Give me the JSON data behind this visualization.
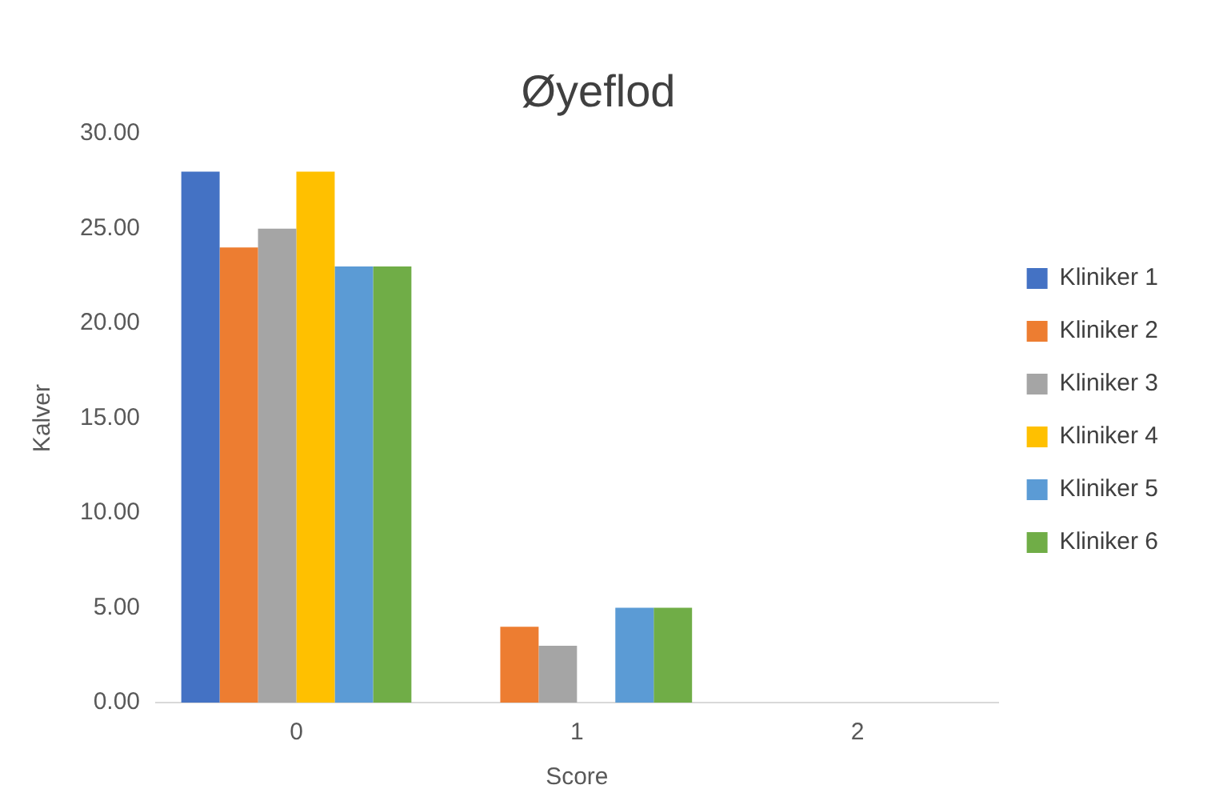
{
  "chart_data": {
    "type": "bar",
    "title": "Øyeflod",
    "xlabel": "Score",
    "ylabel": "Kalver",
    "categories": [
      "0",
      "1",
      "2"
    ],
    "series": [
      {
        "name": "Kliniker 1",
        "color": "#4472c4",
        "values": [
          28,
          0,
          0
        ]
      },
      {
        "name": "Kliniker 2",
        "color": "#ed7d31",
        "values": [
          24,
          4,
          0
        ]
      },
      {
        "name": "Kliniker 3",
        "color": "#a5a5a5",
        "values": [
          25,
          3,
          0
        ]
      },
      {
        "name": "Kliniker 4",
        "color": "#ffc000",
        "values": [
          28,
          0,
          0
        ]
      },
      {
        "name": "Kliniker 5",
        "color": "#5b9bd5",
        "values": [
          23,
          5,
          0
        ]
      },
      {
        "name": "Kliniker 6",
        "color": "#70ad47",
        "values": [
          23,
          5,
          0
        ]
      }
    ],
    "ylim": [
      0,
      30
    ],
    "yticks": [
      {
        "value": 0,
        "label": "0.00"
      },
      {
        "value": 5,
        "label": "5.00"
      },
      {
        "value": 10,
        "label": "10.00"
      },
      {
        "value": 15,
        "label": "15.00"
      },
      {
        "value": 20,
        "label": "20.00"
      },
      {
        "value": 25,
        "label": "25.00"
      },
      {
        "value": 30,
        "label": "30.00"
      }
    ],
    "grid": false,
    "legend": "right"
  }
}
